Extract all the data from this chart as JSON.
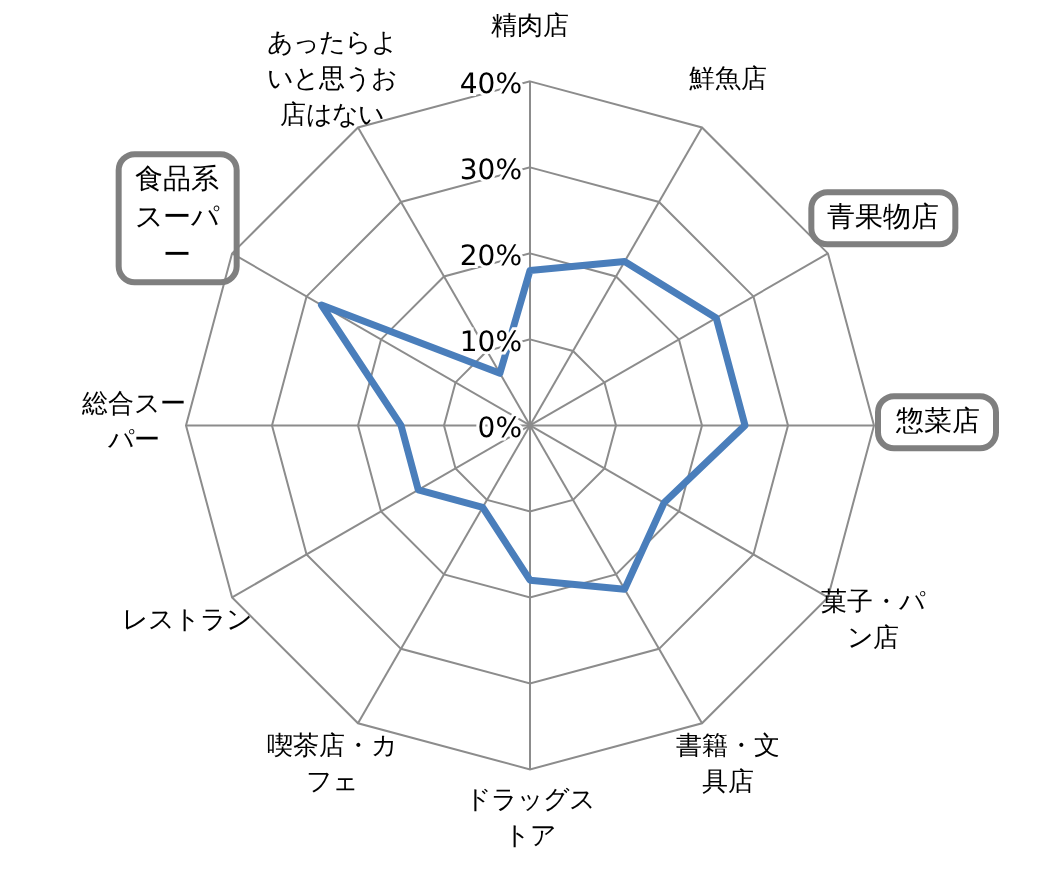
{
  "chart_data": {
    "type": "radar",
    "categories": [
      "精肉店",
      "鮮魚店",
      "青果物店",
      "惣菜店",
      "菓子・パン店",
      "書籍・文具店",
      "ドラッグストア",
      "喫茶店・カフェ",
      "レストラン",
      "総合スーパー",
      "食品系スーパー",
      "あったらよいと思うお店はない"
    ],
    "series": [
      {
        "color": "#4a7ebb",
        "values": [
          18,
          22,
          25,
          25,
          18,
          22,
          18,
          11,
          15,
          15,
          28,
          7
        ]
      }
    ],
    "ylim": [
      0,
      40
    ],
    "yticks": [
      {
        "value": 0,
        "label": "0%"
      },
      {
        "value": 10,
        "label": "10%"
      },
      {
        "value": 20,
        "label": "20%"
      },
      {
        "value": 30,
        "label": "30%"
      },
      {
        "value": 40,
        "label": "40%"
      }
    ],
    "grid": true
  }
}
